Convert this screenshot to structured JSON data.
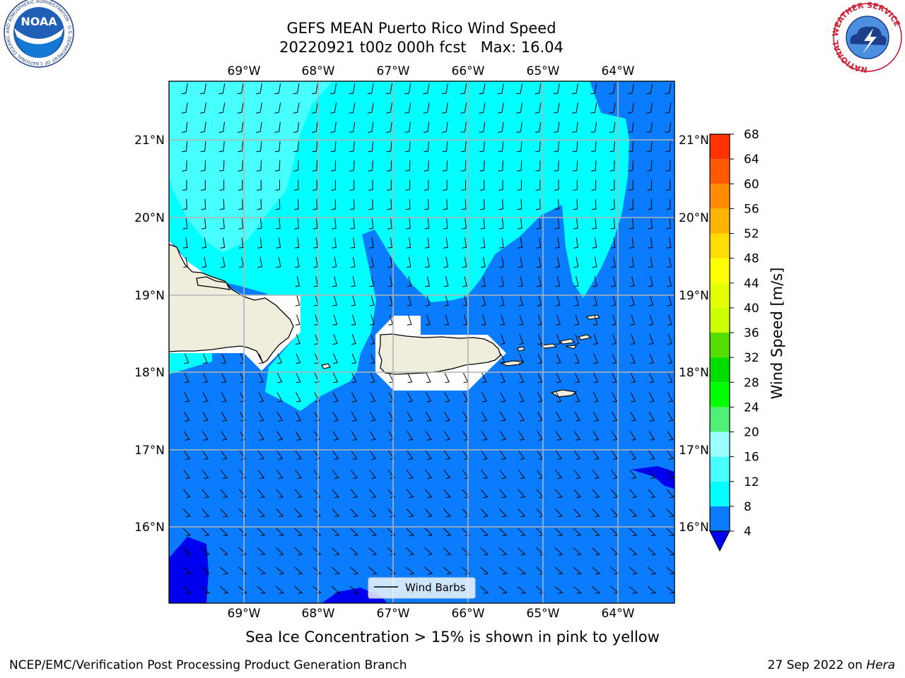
{
  "title": {
    "line1": "GEFS MEAN Puerto Rico Wind Speed",
    "line2": "20220921 t00z 000h fcst   Max: 16.04"
  },
  "map": {
    "lon_range": [
      -70.0,
      -63.25
    ],
    "lat_range": [
      15.0,
      21.75
    ],
    "lon_ticks": [
      "69°W",
      "68°W",
      "67°W",
      "66°W",
      "65°W",
      "64°W"
    ],
    "lat_ticks": [
      "21°N",
      "20°N",
      "19°N",
      "18°N",
      "17°N",
      "16°N"
    ],
    "grid": true,
    "legend_label": "Wind Barbs",
    "legend_position": "bottom-center"
  },
  "colorbar": {
    "label": "Wind Speed [m/s]",
    "ticks": [
      "68",
      "64",
      "60",
      "56",
      "52",
      "48",
      "44",
      "40",
      "36",
      "32",
      "28",
      "24",
      "20",
      "16",
      "12",
      "8",
      "4"
    ],
    "levels": [
      4,
      8,
      12,
      16,
      20,
      24,
      28,
      32,
      36,
      40,
      44,
      48,
      52,
      56,
      60,
      64,
      68
    ],
    "colors": [
      "#0a7cff",
      "#00ffff",
      "#48ffff",
      "#9cffff",
      "#50f078",
      "#00ff00",
      "#00dd00",
      "#55dd00",
      "#ccff00",
      "#e6ff00",
      "#ffff00",
      "#ffdd00",
      "#ffb400",
      "#ff8c00",
      "#ff5a00",
      "#ff3200"
    ],
    "under_color": "#0000f0"
  },
  "caption": "Sea Ice Concentration > 15% is shown in pink to yellow",
  "footer": {
    "left": "NCEP/EMC/Verification Post Processing Product Generation Branch",
    "right_date": "27 Sep 2022 on ",
    "right_host": "Hera"
  },
  "logos": {
    "noaa_text": "NOAA",
    "noaa_ring_text": "NATIONAL OCEANIC AND ATMOSPHERIC ADMINISTRATION · U.S. DEPARTMENT OF COMMERCE",
    "nws_ring_text": "NATIONAL WEATHER SERVICE"
  },
  "colors": {
    "land": "#efeddc",
    "ocean_4_8": "#0a7cff",
    "ocean_8_12": "#00ffff",
    "ocean_12_16": "#48ffff",
    "ocean_below_4": "#0000f0"
  }
}
